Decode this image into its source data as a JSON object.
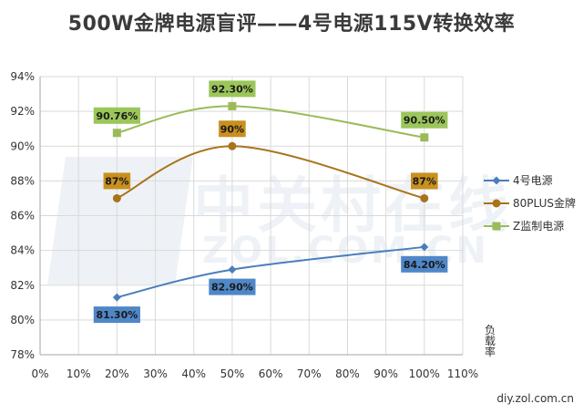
{
  "chart_data": {
    "type": "line",
    "title": "500W金牌电源盲评——4号电源115V转换效率",
    "x": [
      20,
      50,
      100
    ],
    "x_tick_labels": [
      "0%",
      "10%",
      "20%",
      "30%",
      "40%",
      "50%",
      "60%",
      "70%",
      "80%",
      "90%",
      "100%",
      "110%"
    ],
    "xlim": [
      0,
      110
    ],
    "ylim": [
      78,
      94
    ],
    "y_tick_labels": [
      "78%",
      "80%",
      "82%",
      "84%",
      "86%",
      "88%",
      "90%",
      "92%",
      "94%"
    ],
    "xlabel": "负载率",
    "ylabel": "",
    "grid": true,
    "legend_position": "right",
    "series": [
      {
        "name": "4号电源",
        "values": [
          81.3,
          82.9,
          84.2
        ],
        "labels": [
          "81.30%",
          "82.90%",
          "84.20%"
        ],
        "color": "#4a7ebb",
        "label_bg": "#4f87c8",
        "marker": "diamond",
        "label_side": "below"
      },
      {
        "name": "80PLUS金牌",
        "values": [
          87,
          90,
          87
        ],
        "labels": [
          "87%",
          "90%",
          "87%"
        ],
        "color": "#a8741a",
        "label_bg": "#c8901e",
        "marker": "circle",
        "label_side": "above"
      },
      {
        "name": "Z监制电源",
        "values": [
          90.76,
          92.3,
          90.5
        ],
        "labels": [
          "90.76%",
          "92.30%",
          "90.50%"
        ],
        "color": "#9bbb59",
        "label_bg": "#9bc65a",
        "marker": "square",
        "label_side": "above"
      }
    ]
  },
  "watermark": {
    "main": "中关村在线",
    "sub": "ZOL.COM.CN"
  },
  "footer": {
    "site": "diy.zol.com.cn"
  }
}
